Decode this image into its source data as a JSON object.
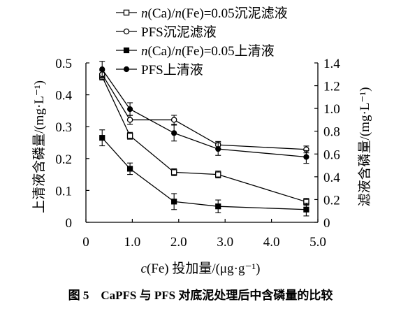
{
  "chart_data": {
    "type": "line",
    "caption": "图 5　CaPFS 与 PFS 对底泥处理后中含磷量的比较",
    "xlabel": "c(Fe) 投加量/(μg·g⁻¹)",
    "ylabel_left": "上清液含磷量/(mg·L⁻¹)",
    "ylabel_right": "滤液含磷量/(mg·L⁻¹)",
    "xlim": [
      0,
      5.0
    ],
    "ylim_left": [
      0,
      0.5
    ],
    "ylim_right": [
      0,
      1.4
    ],
    "x_ticks": [
      "0",
      "1.0",
      "2.0",
      "3.0",
      "4.0",
      "5.0"
    ],
    "y_left_ticks": [
      "0",
      "0.1",
      "0.2",
      "0.3",
      "0.4",
      "0.5"
    ],
    "y_right_ticks": [
      "0",
      "0.2",
      "0.4",
      "0.6",
      "0.8",
      "1.0",
      "1.2",
      "1.4"
    ],
    "legend_position": "top",
    "series": [
      {
        "name": "n(Ca)/n(Fe)=0.05沉泥滤液",
        "axis": "right",
        "marker": "open-square",
        "x": [
          0.35,
          0.95,
          1.9,
          2.85,
          4.75
        ],
        "y": [
          1.28,
          0.76,
          0.44,
          0.42,
          0.18
        ],
        "err": [
          0.03,
          0.03,
          0.03,
          0.03,
          0.03
        ]
      },
      {
        "name": "PFS沉泥滤液",
        "axis": "right",
        "marker": "open-circle",
        "x": [
          0.35,
          0.95,
          1.9,
          2.85,
          4.75
        ],
        "y": [
          1.3,
          0.9,
          0.9,
          0.68,
          0.64
        ],
        "err": [
          0.03,
          0.04,
          0.04,
          0.03,
          0.03
        ]
      },
      {
        "name": "n(Ca)/n(Fe)=0.05上清液",
        "axis": "left",
        "marker": "filled-square",
        "x": [
          0.35,
          0.95,
          1.9,
          2.85,
          4.75
        ],
        "y": [
          0.265,
          0.168,
          0.065,
          0.05,
          0.04
        ],
        "err": [
          0.025,
          0.018,
          0.025,
          0.02,
          0.02
        ]
      },
      {
        "name": "PFS上清液",
        "axis": "left",
        "marker": "filled-circle",
        "x": [
          0.35,
          0.95,
          1.9,
          2.85,
          4.75
        ],
        "y": [
          0.48,
          0.355,
          0.28,
          0.23,
          0.205
        ],
        "err": [
          0.025,
          0.02,
          0.025,
          0.02,
          0.02
        ]
      }
    ]
  }
}
